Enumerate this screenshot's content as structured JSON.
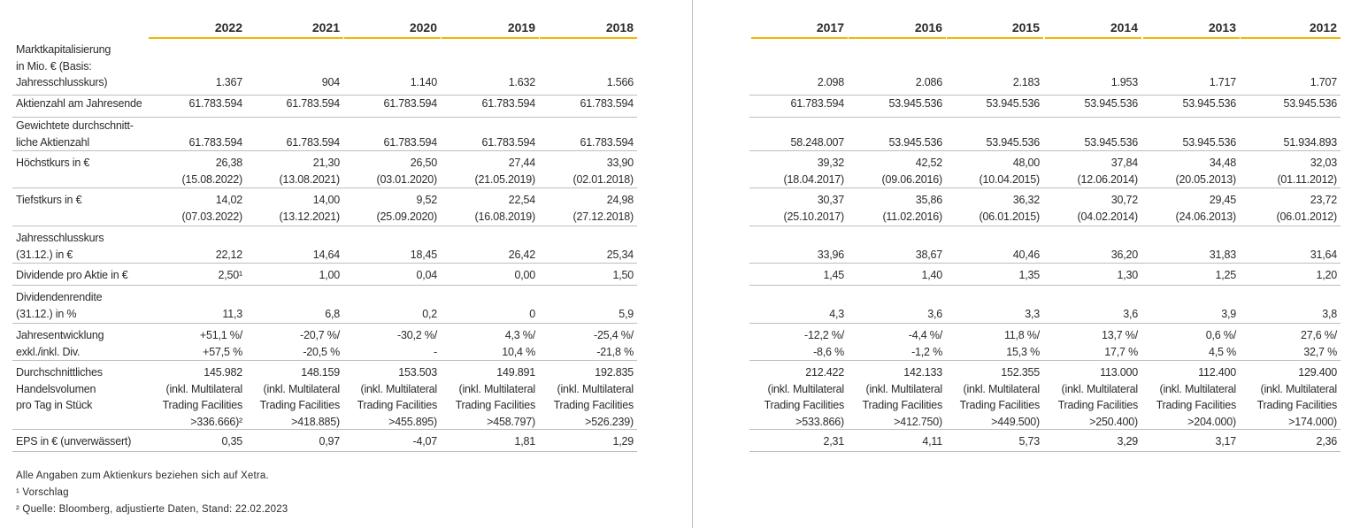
{
  "years": [
    "2022",
    "2021",
    "2020",
    "2019",
    "2018",
    "2017",
    "2016",
    "2015",
    "2014",
    "2013",
    "2012"
  ],
  "rows": [
    {
      "label": [
        "Marktkapitalisierung",
        "in Mio. € (Basis:",
        "Jahresschlusskurs)"
      ],
      "cells": [
        [
          "1.367"
        ],
        [
          "904"
        ],
        [
          "1.140"
        ],
        [
          "1.632"
        ],
        [
          "1.566"
        ],
        [
          "2.098"
        ],
        [
          "2.086"
        ],
        [
          "2.183"
        ],
        [
          "1.953"
        ],
        [
          "1.717"
        ],
        [
          "1.707"
        ]
      ]
    },
    {
      "label": [
        "Aktienzahl am Jahresende"
      ],
      "cells": [
        [
          "61.783.594"
        ],
        [
          "61.783.594"
        ],
        [
          "61.783.594"
        ],
        [
          "61.783.594"
        ],
        [
          "61.783.594"
        ],
        [
          "61.783.594"
        ],
        [
          "53.945.536"
        ],
        [
          "53.945.536"
        ],
        [
          "53.945.536"
        ],
        [
          "53.945.536"
        ],
        [
          "53.945.536"
        ]
      ]
    },
    {
      "label": [
        "Gewichtete durchschnitt-",
        "liche Aktienzahl"
      ],
      "cells": [
        [
          "61.783.594"
        ],
        [
          "61.783.594"
        ],
        [
          "61.783.594"
        ],
        [
          "61.783.594"
        ],
        [
          "61.783.594"
        ],
        [
          "58.248.007"
        ],
        [
          "53.945.536"
        ],
        [
          "53.945.536"
        ],
        [
          "53.945.536"
        ],
        [
          "53.945.536"
        ],
        [
          "51.934.893"
        ]
      ]
    },
    {
      "label": [
        "Höchstkurs in €"
      ],
      "cells": [
        [
          "26,38",
          "(15.08.2022)"
        ],
        [
          "21,30",
          "(13.08.2021)"
        ],
        [
          "26,50",
          "(03.01.2020)"
        ],
        [
          "27,44",
          "(21.05.2019)"
        ],
        [
          "33,90",
          "(02.01.2018)"
        ],
        [
          "39,32",
          "(18.04.2017)"
        ],
        [
          "42,52",
          "(09.06.2016)"
        ],
        [
          "48,00",
          "(10.04.2015)"
        ],
        [
          "37,84",
          "(12.06.2014)"
        ],
        [
          "34,48",
          "(20.05.2013)"
        ],
        [
          "32,03",
          "(01.11.2012)"
        ]
      ]
    },
    {
      "label": [
        "Tiefstkurs in €"
      ],
      "cells": [
        [
          "14,02",
          "(07.03.2022)"
        ],
        [
          "14,00",
          "(13.12.2021)"
        ],
        [
          "9,52",
          "(25.09.2020)"
        ],
        [
          "22,54",
          "(16.08.2019)"
        ],
        [
          "24,98",
          "(27.12.2018)"
        ],
        [
          "30,37",
          "(25.10.2017)"
        ],
        [
          "35,86",
          "(11.02.2016)"
        ],
        [
          "36,32",
          "(06.01.2015)"
        ],
        [
          "30,72",
          "(04.02.2014)"
        ],
        [
          "29,45",
          "(24.06.2013)"
        ],
        [
          "23,72",
          "(06.01.2012)"
        ]
      ]
    },
    {
      "label": [
        "Jahresschlusskurs",
        "(31.12.) in €"
      ],
      "cells": [
        [
          "22,12"
        ],
        [
          "14,64"
        ],
        [
          "18,45"
        ],
        [
          "26,42"
        ],
        [
          "25,34"
        ],
        [
          "33,96"
        ],
        [
          "38,67"
        ],
        [
          "40,46"
        ],
        [
          "36,20"
        ],
        [
          "31,83"
        ],
        [
          "31,64"
        ]
      ]
    },
    {
      "label": [
        "Dividende pro Aktie in €"
      ],
      "cells": [
        [
          "2,50¹"
        ],
        [
          "1,00"
        ],
        [
          "0,04"
        ],
        [
          "0,00"
        ],
        [
          "1,50"
        ],
        [
          "1,45"
        ],
        [
          "1,40"
        ],
        [
          "1,35"
        ],
        [
          "1,30"
        ],
        [
          "1,25"
        ],
        [
          "1,20"
        ]
      ]
    },
    {
      "label": [
        "Dividendenrendite",
        "(31.12.) in %"
      ],
      "cells": [
        [
          "11,3"
        ],
        [
          "6,8"
        ],
        [
          "0,2"
        ],
        [
          "0"
        ],
        [
          "5,9"
        ],
        [
          "4,3"
        ],
        [
          "3,6"
        ],
        [
          "3,3"
        ],
        [
          "3,6"
        ],
        [
          "3,9"
        ],
        [
          "3,8"
        ]
      ]
    },
    {
      "label": [
        "Jahresentwicklung",
        "exkl./inkl. Div."
      ],
      "cells": [
        [
          "+51,1 %/",
          "+57,5 %"
        ],
        [
          "-20,7 %/",
          "-20,5 %"
        ],
        [
          "-30,2 %/",
          "-"
        ],
        [
          "4,3 %/",
          "10,4 %"
        ],
        [
          "-25,4 %/",
          "-21,8 %"
        ],
        [
          "-12,2 %/",
          "-8,6 %"
        ],
        [
          "-4,4 %/",
          "-1,2 %"
        ],
        [
          "11,8 %/",
          "15,3 %"
        ],
        [
          "13,7 %/",
          "17,7 %"
        ],
        [
          "0,6 %/",
          "4,5 %"
        ],
        [
          "27,6 %/",
          "32,7 %"
        ]
      ]
    },
    {
      "label": [
        "Durchschnittliches",
        "Handelsvolumen",
        "pro Tag in Stück"
      ],
      "cells": [
        [
          "145.982",
          "(inkl. Multilateral",
          "Trading Facilities",
          ">336.666)²"
        ],
        [
          "148.159",
          "(inkl. Multilateral",
          "Trading Facilities",
          ">418.885)"
        ],
        [
          "153.503",
          "(inkl. Multilateral",
          "Trading Facilities",
          ">455.895)"
        ],
        [
          "149.891",
          "(inkl. Multilateral",
          "Trading Facilities",
          ">458.797)"
        ],
        [
          "192.835",
          "(inkl. Multilateral",
          "Trading Facilities",
          ">526.239)"
        ],
        [
          "212.422",
          "(inkl. Multilateral",
          "Trading Facilities",
          ">533.866)"
        ],
        [
          "142.133",
          "(inkl. Multilateral",
          "Trading Facilities",
          ">412.750)"
        ],
        [
          "152.355",
          "(inkl. Multilateral",
          "Trading Facilities",
          ">449.500)"
        ],
        [
          "113.000",
          "(inkl. Multilateral",
          "Trading Facilities",
          ">250.400)"
        ],
        [
          "112.400",
          "(inkl. Multilateral",
          "Trading Facilities",
          ">204.000)"
        ],
        [
          "129.400",
          "(inkl. Multilateral",
          "Trading Facilities",
          ">174.000)"
        ]
      ]
    },
    {
      "label": [
        "EPS in € (unverwässert)"
      ],
      "cells": [
        [
          "0,35"
        ],
        [
          "0,97"
        ],
        [
          "-4,07"
        ],
        [
          "1,81"
        ],
        [
          "1,29"
        ],
        [
          "2,31"
        ],
        [
          "4,11"
        ],
        [
          "5,73"
        ],
        [
          "3,29"
        ],
        [
          "3,17"
        ],
        [
          "2,36"
        ]
      ]
    }
  ],
  "footnotes": [
    "Alle Angaben zum Aktienkurs beziehen sich auf Xetra.",
    "¹ Vorschlag",
    "² Quelle: Bloomberg, adjustierte Daten, Stand: 22.02.2023"
  ],
  "colors": {
    "accent": "#f2b700",
    "rule": "#bdbdbd",
    "text": "#2b2b2b"
  }
}
